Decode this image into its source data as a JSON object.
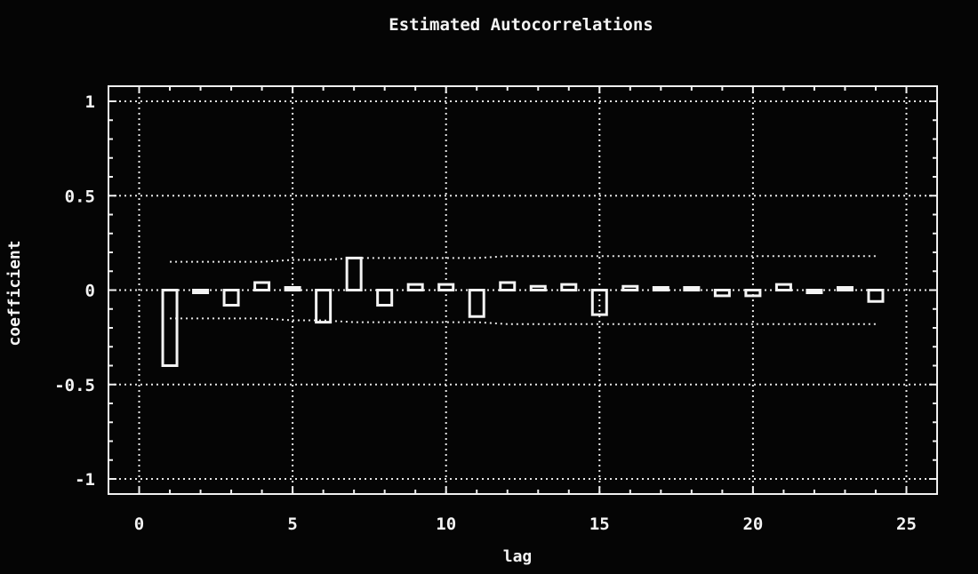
{
  "chart_data": {
    "type": "bar",
    "title": "Estimated Autocorrelations",
    "xlabel": "lag",
    "ylabel": "coefficient",
    "xlim": [
      -1.0,
      26.0
    ],
    "ylim": [
      -1.08,
      1.08
    ],
    "xticks": [
      0,
      5,
      10,
      15,
      20,
      25
    ],
    "yticks": [
      1,
      0.5,
      0,
      -0.5,
      -1
    ],
    "ytick_labels": [
      "1",
      "0.5",
      "0",
      "-0.5",
      "-1"
    ],
    "grid": true,
    "lags": [
      1,
      2,
      3,
      4,
      5,
      6,
      7,
      8,
      9,
      10,
      11,
      12,
      13,
      14,
      15,
      16,
      17,
      18,
      19,
      20,
      21,
      22,
      23,
      24
    ],
    "values": [
      -0.4,
      -0.01,
      -0.08,
      0.04,
      0.01,
      -0.17,
      0.17,
      -0.08,
      0.03,
      0.03,
      -0.14,
      0.04,
      0.02,
      0.03,
      -0.13,
      0.02,
      0.01,
      0.01,
      -0.03,
      -0.03,
      0.03,
      -0.01,
      0.01,
      -0.06
    ],
    "confidence_bands": {
      "upper": [
        0.15,
        0.15,
        0.15,
        0.15,
        0.16,
        0.16,
        0.17,
        0.17,
        0.17,
        0.17,
        0.17,
        0.18,
        0.18,
        0.18,
        0.18,
        0.18,
        0.18,
        0.18,
        0.18,
        0.18,
        0.18,
        0.18,
        0.18,
        0.18
      ],
      "lower": [
        -0.15,
        -0.15,
        -0.15,
        -0.15,
        -0.16,
        -0.16,
        -0.17,
        -0.17,
        -0.17,
        -0.17,
        -0.17,
        -0.18,
        -0.18,
        -0.18,
        -0.18,
        -0.18,
        -0.18,
        -0.18,
        -0.18,
        -0.18,
        -0.18,
        -0.18,
        -0.18,
        -0.18
      ]
    }
  }
}
